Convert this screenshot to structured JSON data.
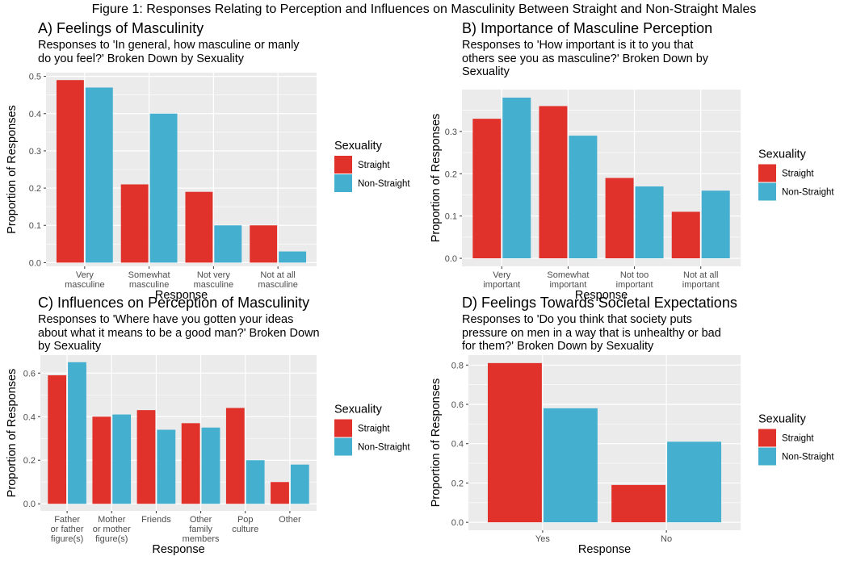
{
  "figure_title": "Figure 1: Responses Relating to Perception and Influences on Masculinity Between Straight and Non-Straight Males",
  "colors": {
    "straight": "#E0322A",
    "non_straight": "#44AFCF",
    "panel_bg": "#EBEBEB",
    "grid": "#FFFFFF"
  },
  "chart_data": [
    {
      "type": "bar",
      "panel": "A",
      "title": "A) Feelings of Masculinity",
      "subtitle": [
        "Responses to 'In general, how masculine or manly",
        "do you feel?' Broken Down by Sexuality"
      ],
      "categories": [
        [
          "Very",
          "masculine"
        ],
        [
          "Somewhat",
          "masculine"
        ],
        [
          "Not very",
          "masculine"
        ],
        [
          "Not at all",
          "masculine"
        ]
      ],
      "series": [
        {
          "name": "Straight",
          "values": [
            0.49,
            0.21,
            0.19,
            0.1
          ]
        },
        {
          "name": "Non-Straight",
          "values": [
            0.47,
            0.4,
            0.1,
            0.03
          ]
        }
      ],
      "xlabel": "Response",
      "ylabel": "Proportion of Responses",
      "ylim": [
        -0.01,
        0.51
      ],
      "yticks": [
        "0.0",
        "0.1",
        "0.2",
        "0.3",
        "0.4",
        "0.5"
      ],
      "legend_title": "Sexuality",
      "legend_position": "right",
      "grid": true
    },
    {
      "type": "bar",
      "panel": "B",
      "title": "B) Importance of Masculine Perception",
      "subtitle": [
        "Responses to 'How important is it to you that",
        "others see you as masculine?' Broken Down by",
        "Sexuality"
      ],
      "categories": [
        [
          "Very",
          "important"
        ],
        [
          "Somewhat",
          "important"
        ],
        [
          "Not too",
          "important"
        ],
        [
          "Not at all",
          "important"
        ]
      ],
      "series": [
        {
          "name": "Straight",
          "values": [
            0.33,
            0.36,
            0.19,
            0.11
          ]
        },
        {
          "name": "Non-Straight",
          "values": [
            0.38,
            0.29,
            0.17,
            0.16
          ]
        }
      ],
      "xlabel": "Response",
      "ylabel": "Proportion of Responses",
      "ylim": [
        -0.019,
        0.399
      ],
      "yticks": [
        "0.0",
        "0.1",
        "0.2",
        "0.3"
      ],
      "legend_title": "Sexuality",
      "legend_position": "right",
      "grid": true
    },
    {
      "type": "bar",
      "panel": "C",
      "title": "C) Influences on Perception of Masculinity",
      "subtitle": [
        "Responses to 'Where have you gotten your ideas",
        "about what it means to be a good man?' Broken Down",
        "by Sexuality"
      ],
      "categories": [
        [
          "Father",
          "or father",
          "figure(s)"
        ],
        [
          "Mother",
          "or mother",
          "figure(s)"
        ],
        [
          "Friends"
        ],
        [
          "Other",
          "family",
          "members"
        ],
        [
          "Pop",
          "culture"
        ],
        [
          "Other"
        ]
      ],
      "series": [
        {
          "name": "Straight",
          "values": [
            0.59,
            0.4,
            0.43,
            0.37,
            0.44,
            0.1
          ]
        },
        {
          "name": "Non-Straight",
          "values": [
            0.65,
            0.41,
            0.34,
            0.35,
            0.2,
            0.18
          ]
        }
      ],
      "xlabel": "Response",
      "ylabel": "Proportion of Responses",
      "ylim": [
        -0.0325,
        0.6825
      ],
      "yticks": [
        "0.0",
        "0.2",
        "0.4",
        "0.6"
      ],
      "legend_title": "Sexuality",
      "legend_position": "right",
      "grid": true
    },
    {
      "type": "bar",
      "panel": "D",
      "title": "D) Feelings Towards Societal Expectations",
      "subtitle": [
        "Responses to 'Do you think that society puts",
        "pressure on men in a way that is unhealthy or bad",
        "for them?' Broken Down by Sexuality"
      ],
      "categories": [
        [
          "Yes"
        ],
        [
          "No"
        ]
      ],
      "series": [
        {
          "name": "Straight",
          "values": [
            0.81,
            0.19
          ]
        },
        {
          "name": "Non-Straight",
          "values": [
            0.58,
            0.41
          ]
        }
      ],
      "xlabel": "Response",
      "ylabel": "Proportion of Responses",
      "ylim": [
        -0.0405,
        0.8505
      ],
      "yticks": [
        "0.0",
        "0.2",
        "0.4",
        "0.6",
        "0.8"
      ],
      "legend_title": "Sexuality",
      "legend_position": "right",
      "grid": true
    }
  ]
}
